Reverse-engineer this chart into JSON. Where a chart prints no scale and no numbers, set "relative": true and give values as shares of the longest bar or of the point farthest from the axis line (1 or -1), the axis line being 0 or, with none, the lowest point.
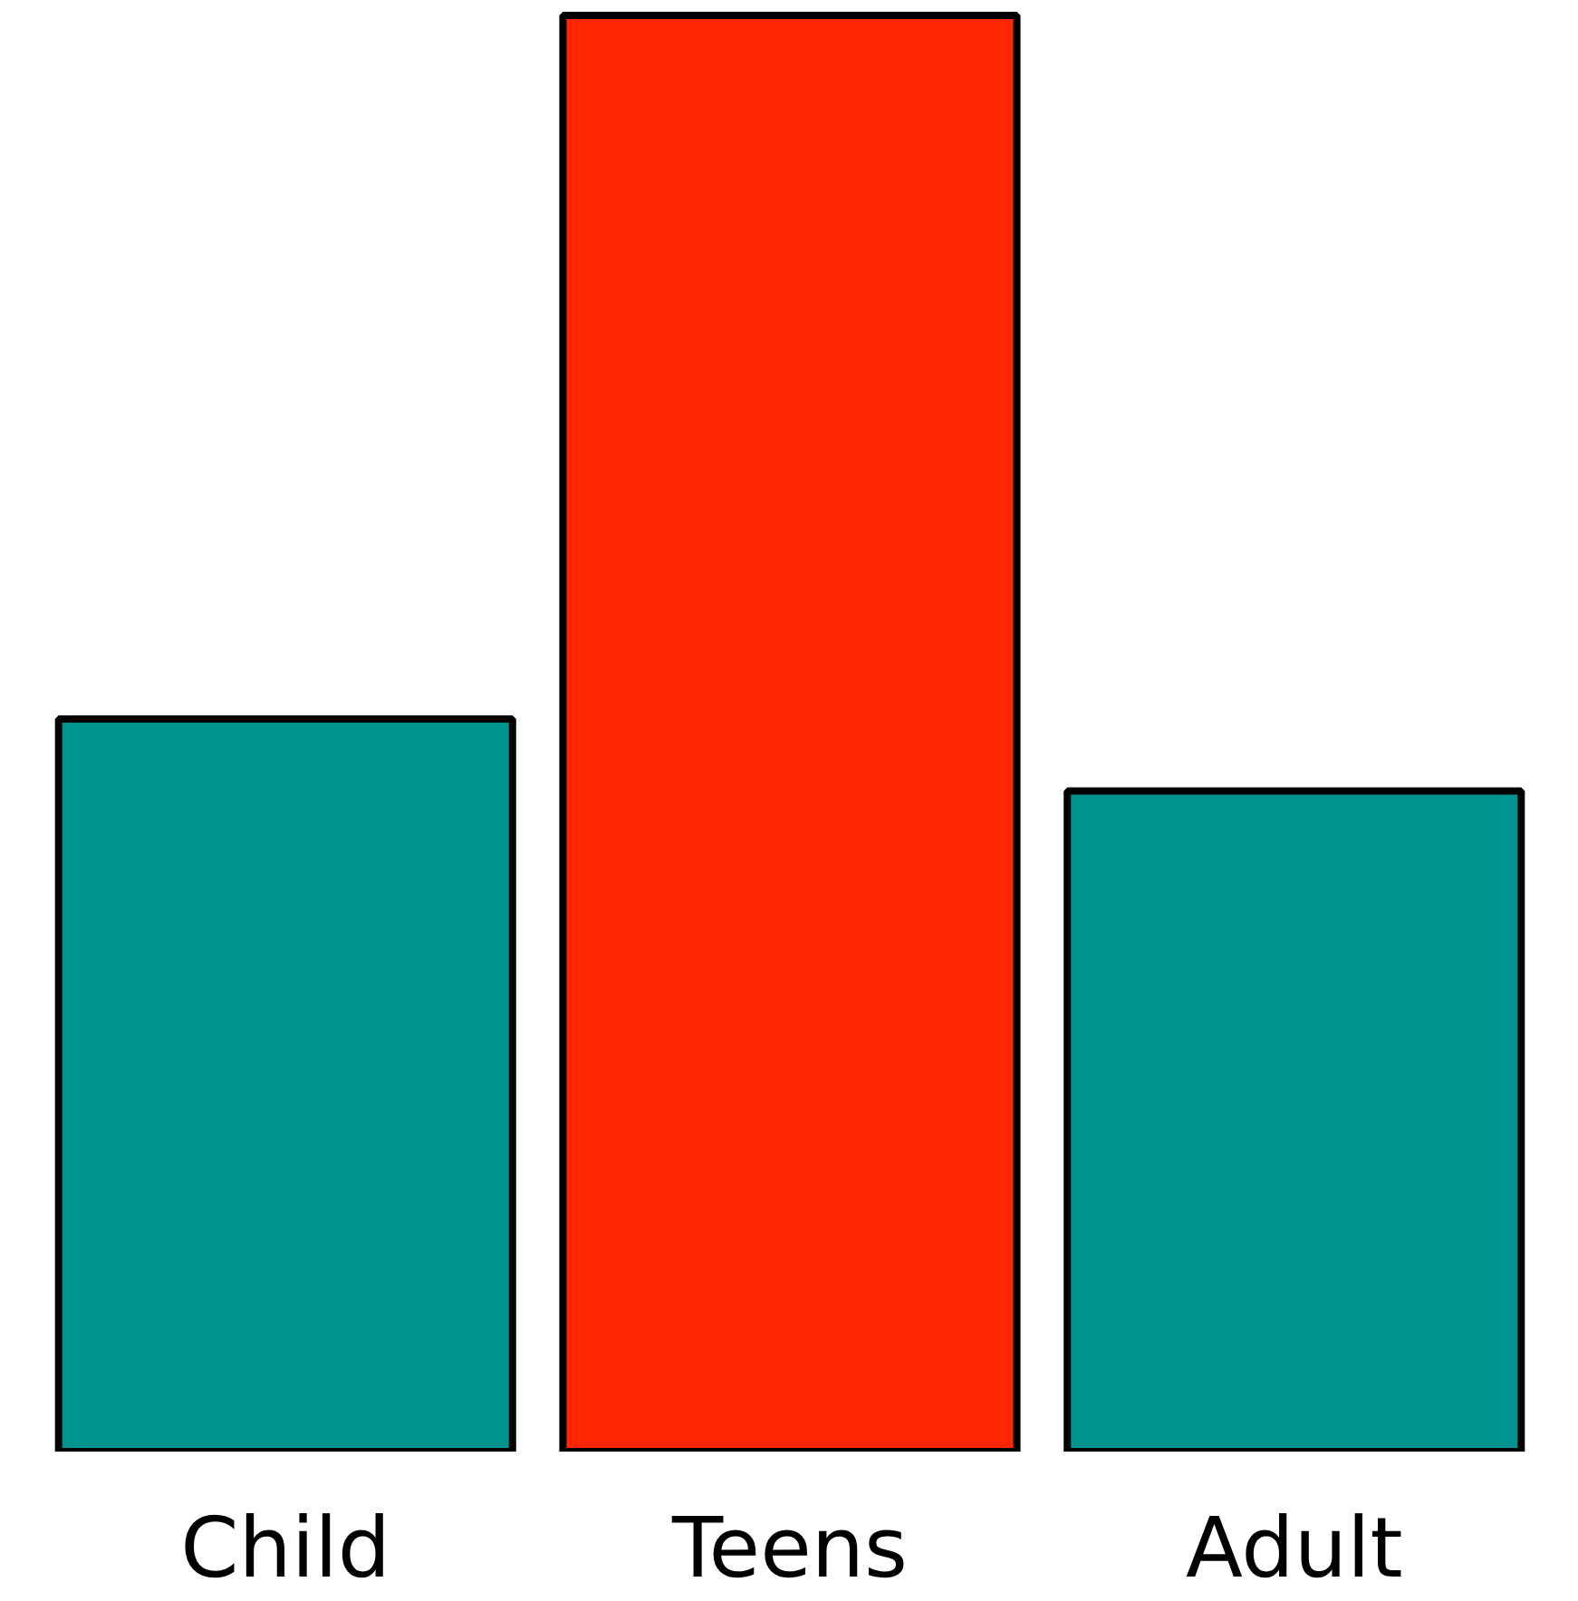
{
  "chart_data": {
    "type": "bar",
    "relative": true,
    "categories": [
      "Child",
      "Teens",
      "Adult"
    ],
    "values": [
      0.51,
      1,
      0.46
    ],
    "colors": [
      "#009490",
      "#ff2600",
      "#009490"
    ],
    "grid": false
  }
}
